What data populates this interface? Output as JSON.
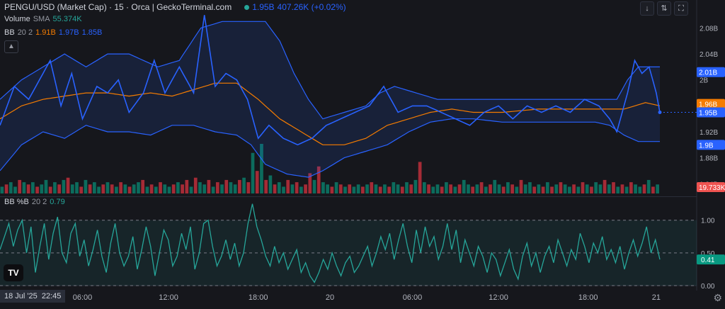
{
  "header": {
    "title": "PENGU/USD (Market Cap) · 15 · Orca | GeckoTerminal.com",
    "last_value": "1.95B",
    "change": "407.26K (+0.02%)"
  },
  "legends": {
    "volume_label": "Volume",
    "volume_sma_label": "SMA",
    "volume_value": "55.374K",
    "bb_label": "BB",
    "bb_params": "20 2",
    "bb_basis": "1.91B",
    "bb_upper": "1.97B",
    "bb_lower": "1.85B",
    "pctb_label": "BB %B",
    "pctb_params": "20 2",
    "pctb_value": "0.79"
  },
  "time_axis": {
    "cursor_date": "18 Jul '25",
    "cursor_time": "22:45",
    "ticks": [
      "06:00",
      "12:00",
      "18:00",
      "20",
      "06:00",
      "12:00",
      "18:00",
      "21"
    ]
  },
  "price_axis": {
    "ticks": [
      "2.08B",
      "2.04B",
      "2B",
      "1.92B",
      "1.88B",
      "1.84B"
    ],
    "badges": [
      {
        "label": "2.01B",
        "color": "#2962ff"
      },
      {
        "label": "1.96B",
        "color": "#f57c00"
      },
      {
        "label": "1.95B",
        "color": "#2962ff"
      },
      {
        "label": "1.9B",
        "color": "#2962ff"
      },
      {
        "label": "19.733K",
        "color": "#ef5350"
      }
    ]
  },
  "pctb_axis": {
    "ticks": [
      "1.00",
      "0.50",
      "0.00"
    ],
    "badge": {
      "label": "0.41",
      "color": "#089981"
    }
  },
  "icons": [
    "arrow-down-icon",
    "compare-icon",
    "fullscreen-icon",
    "gear-icon",
    "tradingview-logo"
  ],
  "colors": {
    "price_line": "#2962ff",
    "bb_band": "#2962ff",
    "bb_basis": "#f57c00",
    "pctb_line": "#26a69a",
    "vol_up": "#089981",
    "vol_down": "#f23645"
  },
  "chart_data": [
    {
      "type": "line",
      "title": "PENGU/USD (Market Cap)",
      "y_unit": "B",
      "ylim": [
        1.825,
        2.11
      ],
      "n": 150,
      "x_ticks": [
        {
          "label": "06:00",
          "index": 23
        },
        {
          "label": "12:00",
          "index": 47
        },
        {
          "label": "18:00",
          "index": 72
        },
        {
          "label": "20",
          "index": 92
        },
        {
          "label": "06:00",
          "index": 115
        },
        {
          "label": "12:00",
          "index": 139
        },
        {
          "label": "18:00",
          "index": 164
        },
        {
          "label": "21",
          "index": 183
        }
      ],
      "price": [
        [
          0,
          1.93
        ],
        [
          4,
          1.99
        ],
        [
          8,
          1.97
        ],
        [
          11,
          2.0
        ],
        [
          14,
          2.03
        ],
        [
          17,
          1.96
        ],
        [
          20,
          2.01
        ],
        [
          23,
          1.94
        ],
        [
          27,
          1.99
        ],
        [
          30,
          1.98
        ],
        [
          33,
          2.0
        ],
        [
          36,
          1.95
        ],
        [
          40,
          1.98
        ],
        [
          43,
          2.03
        ],
        [
          46,
          1.98
        ],
        [
          50,
          2.02
        ],
        [
          54,
          1.98
        ],
        [
          57,
          2.1
        ],
        [
          60,
          1.99
        ],
        [
          63,
          2.01
        ],
        [
          66,
          2.0
        ],
        [
          69,
          1.97
        ],
        [
          72,
          1.91
        ],
        [
          75,
          1.93
        ],
        [
          79,
          1.91
        ],
        [
          83,
          1.9
        ],
        [
          87,
          1.91
        ],
        [
          91,
          1.93
        ],
        [
          95,
          1.94
        ],
        [
          99,
          1.95
        ],
        [
          103,
          1.96
        ],
        [
          107,
          1.99
        ],
        [
          111,
          1.95
        ],
        [
          115,
          1.96
        ],
        [
          119,
          1.96
        ],
        [
          123,
          1.95
        ],
        [
          127,
          1.94
        ],
        [
          131,
          1.93
        ],
        [
          135,
          1.95
        ],
        [
          139,
          1.96
        ],
        [
          143,
          1.94
        ],
        [
          147,
          1.96
        ],
        [
          151,
          1.95
        ],
        [
          155,
          1.96
        ],
        [
          159,
          1.95
        ],
        [
          163,
          1.97
        ],
        [
          167,
          1.96
        ],
        [
          170,
          1.94
        ],
        [
          172,
          1.92
        ],
        [
          175,
          1.98
        ],
        [
          177,
          2.03
        ],
        [
          179,
          2.01
        ],
        [
          181,
          2.02
        ],
        [
          183,
          1.98
        ],
        [
          184,
          1.95
        ]
      ],
      "bb_upper": [
        [
          0,
          1.97
        ],
        [
          6,
          2.0
        ],
        [
          12,
          2.02
        ],
        [
          18,
          2.04
        ],
        [
          24,
          2.02
        ],
        [
          30,
          2.04
        ],
        [
          36,
          2.04
        ],
        [
          40,
          2.03
        ],
        [
          44,
          2.02
        ],
        [
          50,
          2.03
        ],
        [
          56,
          2.08
        ],
        [
          62,
          2.09
        ],
        [
          68,
          2.09
        ],
        [
          74,
          2.09
        ],
        [
          78,
          2.06
        ],
        [
          82,
          2.01
        ],
        [
          86,
          1.97
        ],
        [
          90,
          1.94
        ],
        [
          96,
          1.95
        ],
        [
          102,
          1.96
        ],
        [
          106,
          1.98
        ],
        [
          110,
          1.99
        ],
        [
          116,
          1.98
        ],
        [
          122,
          1.97
        ],
        [
          130,
          1.97
        ],
        [
          140,
          1.97
        ],
        [
          150,
          1.97
        ],
        [
          160,
          1.97
        ],
        [
          166,
          1.97
        ],
        [
          172,
          1.97
        ],
        [
          175,
          2.0
        ],
        [
          178,
          2.02
        ],
        [
          184,
          2.02
        ]
      ],
      "bb_basis": [
        [
          0,
          1.94
        ],
        [
          6,
          1.96
        ],
        [
          12,
          1.97
        ],
        [
          18,
          1.975
        ],
        [
          24,
          1.98
        ],
        [
          30,
          1.98
        ],
        [
          36,
          1.975
        ],
        [
          42,
          1.98
        ],
        [
          48,
          1.975
        ],
        [
          54,
          1.985
        ],
        [
          60,
          1.995
        ],
        [
          66,
          1.995
        ],
        [
          72,
          1.97
        ],
        [
          78,
          1.94
        ],
        [
          84,
          1.92
        ],
        [
          90,
          1.9
        ],
        [
          96,
          1.9
        ],
        [
          102,
          1.91
        ],
        [
          108,
          1.93
        ],
        [
          114,
          1.94
        ],
        [
          120,
          1.95
        ],
        [
          126,
          1.955
        ],
        [
          132,
          1.95
        ],
        [
          140,
          1.95
        ],
        [
          150,
          1.955
        ],
        [
          160,
          1.955
        ],
        [
          168,
          1.955
        ],
        [
          174,
          1.955
        ],
        [
          180,
          1.965
        ],
        [
          184,
          1.96
        ]
      ],
      "bb_lower": [
        [
          0,
          1.86
        ],
        [
          6,
          1.9
        ],
        [
          12,
          1.92
        ],
        [
          18,
          1.91
        ],
        [
          24,
          1.93
        ],
        [
          30,
          1.92
        ],
        [
          36,
          1.92
        ],
        [
          42,
          1.915
        ],
        [
          48,
          1.93
        ],
        [
          54,
          1.93
        ],
        [
          60,
          1.92
        ],
        [
          66,
          1.915
        ],
        [
          70,
          1.9
        ],
        [
          74,
          1.87
        ],
        [
          80,
          1.855
        ],
        [
          86,
          1.85
        ],
        [
          90,
          1.86
        ],
        [
          96,
          1.88
        ],
        [
          102,
          1.89
        ],
        [
          108,
          1.9
        ],
        [
          114,
          1.92
        ],
        [
          120,
          1.935
        ],
        [
          126,
          1.94
        ],
        [
          132,
          1.94
        ],
        [
          140,
          1.935
        ],
        [
          150,
          1.935
        ],
        [
          160,
          1.935
        ],
        [
          166,
          1.935
        ],
        [
          170,
          1.93
        ],
        [
          174,
          1.915
        ],
        [
          178,
          1.905
        ],
        [
          184,
          1.905
        ]
      ]
    },
    {
      "type": "bar",
      "title": "Volume",
      "series_name": "Volume",
      "values": [
        3,
        4,
        5,
        3,
        6,
        5,
        4,
        5,
        3,
        4,
        6,
        3,
        5,
        4,
        6,
        7,
        4,
        5,
        3,
        6,
        4,
        5,
        3,
        4,
        5,
        4,
        3,
        5,
        4,
        3,
        4,
        5,
        6,
        3,
        4,
        3,
        5,
        4,
        3,
        4,
        5,
        4,
        6,
        3,
        7,
        5,
        4,
        6,
        3,
        5,
        4,
        6,
        5,
        4,
        6,
        7,
        5,
        18,
        10,
        22,
        6,
        8,
        4,
        5,
        3,
        6,
        4,
        5,
        3,
        4,
        9,
        6,
        12,
        5,
        4,
        3,
        5,
        4,
        3,
        4,
        3,
        4,
        3,
        4,
        5,
        4,
        3,
        4,
        3,
        5,
        4,
        3,
        5,
        4,
        6,
        14,
        5,
        4,
        3,
        4,
        3,
        5,
        4,
        3,
        4,
        6,
        4,
        3,
        4,
        5,
        3,
        4,
        6,
        4,
        3,
        5,
        4,
        3,
        6,
        4,
        5,
        3,
        4,
        3,
        5,
        3,
        4,
        5,
        4,
        3,
        4,
        3,
        5,
        4,
        3,
        5,
        4,
        6,
        4,
        5,
        3,
        4,
        3,
        5,
        4,
        3,
        4,
        6,
        3,
        4
      ],
      "up": [
        1,
        0,
        1,
        1,
        0,
        1,
        0,
        1,
        0,
        1,
        1,
        0,
        1,
        0,
        1,
        0,
        1,
        1,
        0,
        1,
        0,
        1,
        1,
        0,
        1,
        0,
        1,
        0,
        1,
        0,
        1,
        1,
        0,
        1,
        0,
        1,
        0,
        1,
        1,
        0,
        1,
        0,
        0,
        1,
        0,
        1,
        1,
        0,
        1,
        0,
        1,
        0,
        1,
        1,
        0,
        1,
        0,
        1,
        0,
        1,
        0,
        1,
        0,
        1,
        1,
        0,
        1,
        0,
        1,
        0,
        0,
        1,
        0,
        1,
        1,
        0,
        1,
        0,
        1,
        0,
        1,
        1,
        0,
        1,
        0,
        1,
        0,
        1,
        0,
        1,
        1,
        0,
        1,
        0,
        1,
        0,
        1,
        0,
        1,
        1,
        0,
        1,
        0,
        1,
        0,
        1,
        1,
        0,
        1,
        0,
        1,
        0,
        1,
        1,
        0,
        1,
        0,
        1,
        0,
        1,
        1,
        0,
        1,
        0,
        1,
        0,
        1,
        0,
        1,
        1,
        0,
        1,
        0,
        1,
        0,
        1,
        1,
        0,
        1,
        0,
        1,
        0,
        1,
        0,
        1,
        1,
        0,
        1,
        0,
        1
      ],
      "ylim": [
        0,
        22
      ]
    },
    {
      "type": "line",
      "title": "BB %B",
      "series_name": "BB %B",
      "ylim": [
        0,
        1.3
      ],
      "y_ticks": [
        0,
        0.5,
        1
      ],
      "values": [
        0.55,
        0.75,
        0.95,
        0.6,
        0.85,
        1.0,
        0.5,
        0.9,
        0.2,
        0.6,
        0.95,
        0.4,
        0.8,
        1.05,
        0.5,
        0.35,
        0.8,
        0.95,
        0.45,
        0.7,
        0.3,
        0.55,
        0.85,
        0.45,
        0.2,
        0.65,
        0.95,
        0.5,
        0.3,
        0.45,
        0.75,
        0.25,
        0.55,
        0.9,
        0.6,
        0.15,
        0.5,
        0.85,
        0.7,
        0.3,
        0.45,
        0.8,
        0.55,
        0.9,
        0.25,
        0.5,
        0.95,
        1.0,
        0.6,
        0.3,
        0.45,
        0.7,
        0.4,
        0.65,
        0.3,
        0.5,
        0.95,
        1.25,
        0.9,
        0.7,
        0.45,
        0.3,
        0.6,
        0.35,
        0.5,
        0.25,
        0.4,
        0.55,
        0.2,
        0.35,
        0.15,
        0.05,
        0.2,
        0.4,
        0.25,
        0.5,
        0.3,
        0.15,
        0.35,
        0.45,
        0.2,
        0.3,
        0.45,
        0.6,
        0.3,
        0.5,
        0.75,
        0.55,
        0.8,
        0.4,
        0.7,
        0.95,
        0.6,
        0.35,
        0.85,
        0.5,
        0.9,
        0.6,
        0.75,
        0.4,
        0.6,
        0.95,
        0.55,
        0.85,
        0.35,
        0.7,
        0.5,
        0.3,
        0.6,
        0.45,
        0.2,
        0.5,
        0.4,
        0.15,
        0.35,
        0.55,
        0.25,
        0.1,
        0.45,
        0.65,
        0.3,
        0.5,
        0.2,
        0.45,
        0.6,
        0.35,
        0.7,
        0.5,
        0.3,
        0.55,
        0.4,
        0.8,
        0.6,
        0.35,
        0.65,
        0.5,
        0.75,
        0.4,
        0.55,
        0.35,
        0.6,
        0.25,
        0.5,
        0.7,
        0.45,
        0.65,
        0.9,
        0.5,
        0.7,
        0.4
      ]
    }
  ]
}
